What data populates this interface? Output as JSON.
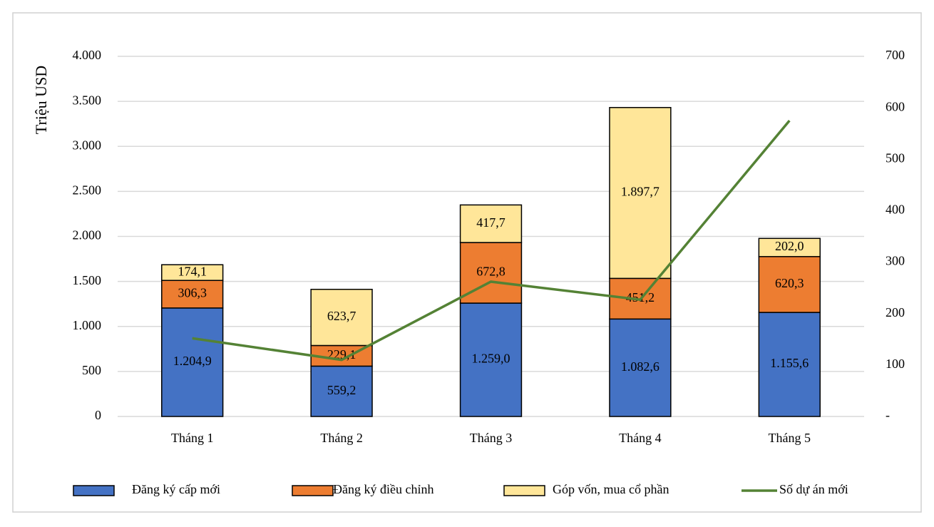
{
  "chart_data": {
    "type": "bar",
    "stacked": true,
    "y_label": "Triệu USD",
    "categories": [
      "Tháng 1",
      "Tháng 2",
      "Tháng 3",
      "Tháng 4",
      "Tháng 5"
    ],
    "series": [
      {
        "name": "Đăng ký cấp mới",
        "color": "#4472c4",
        "values": [
          1204.9,
          559.2,
          1259.0,
          1082.6,
          1155.6
        ],
        "value_labels": [
          "1.204,9",
          "559,2",
          "1.259,0",
          "1.082,6",
          "1.155,6"
        ]
      },
      {
        "name": "Đăng ký điều chỉnh",
        "color": "#ed7d31",
        "values": [
          306.3,
          229.1,
          672.8,
          451.2,
          620.3
        ],
        "value_labels": [
          "306,3",
          "229,1",
          "672,8",
          "451,2",
          "620,3"
        ]
      },
      {
        "name": "Góp vốn, mua cổ phần",
        "color": "#ffe699",
        "values": [
          174.1,
          623.7,
          417.7,
          1897.7,
          202.0
        ],
        "value_labels": [
          "174,1",
          "623,7",
          "417,7",
          "1.897,7",
          "202,0"
        ]
      },
      {
        "name": "Số dự án mới",
        "type": "line",
        "axis": "y2",
        "color": "#548235",
        "values": [
          152,
          110,
          262,
          227,
          575
        ]
      }
    ],
    "ylim": [
      0,
      4000
    ],
    "yticks": [
      0,
      500,
      {
        "value": 1000,
        "label": "1.000"
      },
      {
        "value": 1500,
        "label": "1.500"
      },
      {
        "value": 2000,
        "label": "2.000"
      },
      {
        "value": 2500,
        "label": "2.500"
      },
      {
        "value": 3000,
        "label": "3.000"
      },
      {
        "value": 3500,
        "label": "3.500"
      },
      {
        "value": 4000,
        "label": "4.000"
      }
    ],
    "y2lim": [
      0,
      700
    ],
    "y2ticks": [
      {
        "value": 0,
        "label": "-"
      },
      100,
      200,
      300,
      400,
      500,
      600,
      700
    ],
    "grid": true,
    "legend": "bottom"
  }
}
